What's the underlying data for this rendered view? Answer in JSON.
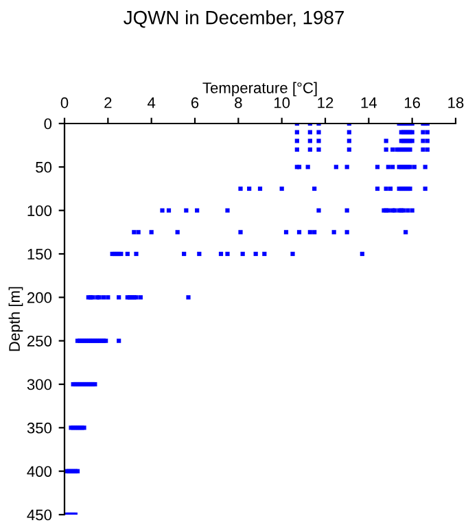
{
  "chart_data": {
    "type": "scatter",
    "title": "JQWN in December, 1987",
    "xlabel": "Temperature [°C]",
    "ylabel": "Depth [m]",
    "xlim": [
      0,
      18
    ],
    "xticks": [
      0,
      2,
      4,
      6,
      8,
      10,
      12,
      14,
      16,
      18
    ],
    "ylim": [
      450,
      0
    ],
    "yticks": [
      0,
      50,
      100,
      150,
      200,
      250,
      300,
      350,
      400,
      450
    ],
    "grid": false,
    "legend": false,
    "marker": "square",
    "series": [
      {
        "color": "#0000ff",
        "x": [
          10.7,
          11.3,
          11.7,
          13.1,
          15.4,
          15.5,
          15.6,
          15.7,
          15.8,
          15.9,
          16.0,
          16.5,
          16.6,
          16.7,
          10.7,
          11.3,
          11.7,
          13.1,
          15.5,
          15.6,
          15.7,
          15.8,
          15.9,
          16.0,
          16.5,
          16.7,
          10.7,
          11.3,
          11.7,
          13.1,
          14.8,
          15.5,
          15.6,
          15.7,
          15.8,
          15.9,
          16.0,
          16.5,
          16.7,
          10.7,
          11.3,
          11.7,
          13.1,
          14.8,
          15.1,
          15.3,
          15.4,
          15.5,
          15.6,
          15.7,
          15.8,
          15.9,
          16.5,
          16.7,
          10.7,
          10.8,
          11.2,
          12.5,
          13.0,
          14.4,
          14.9,
          15.1,
          15.4,
          15.5,
          15.6,
          15.7,
          15.8,
          15.9,
          16.1,
          16.6,
          8.1,
          8.5,
          9.0,
          10.0,
          11.5,
          14.4,
          14.8,
          15.0,
          15.4,
          15.5,
          15.6,
          15.7,
          15.8,
          15.9,
          16.6,
          4.5,
          4.8,
          5.6,
          6.1,
          7.5,
          11.7,
          13.0,
          14.7,
          14.8,
          14.9,
          15.1,
          15.2,
          15.4,
          15.5,
          15.6,
          15.8,
          16.0,
          3.2,
          3.4,
          4.0,
          5.2,
          8.1,
          10.2,
          10.8,
          11.3,
          11.5,
          12.4,
          13.0,
          15.7,
          2.2,
          2.3,
          2.4,
          2.5,
          2.6,
          2.9,
          3.3,
          5.5,
          6.2,
          7.2,
          7.5,
          8.2,
          8.8,
          9.2,
          10.5,
          13.7,
          1.1,
          1.2,
          1.3,
          1.5,
          1.6,
          1.8,
          2.0,
          2.5,
          2.9,
          3.0,
          3.1,
          3.2,
          3.3,
          3.5,
          5.7,
          0.6,
          0.7,
          0.8,
          0.9,
          1.0,
          1.1,
          1.2,
          1.3,
          1.4,
          1.5,
          1.6,
          1.7,
          1.8,
          1.9,
          2.5,
          0.4,
          0.5,
          0.6,
          0.7,
          0.8,
          0.9,
          1.0,
          1.1,
          1.2,
          1.3,
          1.4,
          0.3,
          0.4,
          0.5,
          0.6,
          0.7,
          0.8,
          0.9,
          0.1,
          0.2,
          0.3,
          0.4,
          0.5,
          0.6,
          0.1,
          0.2,
          0.3,
          0.4,
          0.5
        ],
        "values": [
          0,
          0,
          0,
          0,
          0,
          0,
          0,
          0,
          0,
          0,
          0,
          0,
          0,
          0,
          10,
          10,
          10,
          10,
          10,
          10,
          10,
          10,
          10,
          10,
          10,
          10,
          20,
          20,
          20,
          20,
          20,
          20,
          20,
          20,
          20,
          20,
          20,
          20,
          20,
          30,
          30,
          30,
          30,
          30,
          30,
          30,
          30,
          30,
          30,
          30,
          30,
          30,
          30,
          30,
          50,
          50,
          50,
          50,
          50,
          50,
          50,
          50,
          50,
          50,
          50,
          50,
          50,
          50,
          50,
          50,
          75,
          75,
          75,
          75,
          75,
          75,
          75,
          75,
          75,
          75,
          75,
          75,
          75,
          75,
          75,
          100,
          100,
          100,
          100,
          100,
          100,
          100,
          100,
          100,
          100,
          100,
          100,
          100,
          100,
          100,
          100,
          100,
          125,
          125,
          125,
          125,
          125,
          125,
          125,
          125,
          125,
          125,
          125,
          125,
          150,
          150,
          150,
          150,
          150,
          150,
          150,
          150,
          150,
          150,
          150,
          150,
          150,
          150,
          150,
          150,
          200,
          200,
          200,
          200,
          200,
          200,
          200,
          200,
          200,
          200,
          200,
          200,
          200,
          200,
          200,
          250,
          250,
          250,
          250,
          250,
          250,
          250,
          250,
          250,
          250,
          250,
          250,
          250,
          250,
          250,
          300,
          300,
          300,
          300,
          300,
          300,
          300,
          300,
          300,
          300,
          300,
          350,
          350,
          350,
          350,
          350,
          350,
          350,
          400,
          400,
          400,
          400,
          400,
          400,
          450,
          450,
          450,
          450,
          450
        ]
      }
    ]
  }
}
